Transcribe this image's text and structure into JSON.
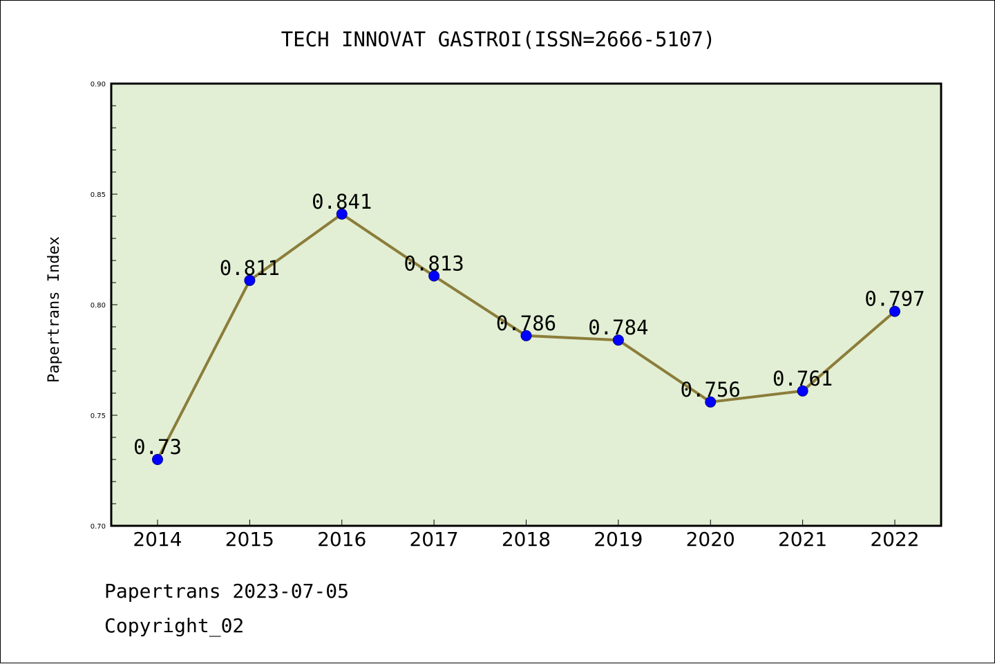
{
  "chart_data": {
    "type": "line",
    "title": "TECH INNOVAT GASTROI(ISSN=2666-5107)",
    "ylabel": "Papertrans Index",
    "xlabel": "",
    "categories": [
      "2014",
      "2015",
      "2016",
      "2017",
      "2018",
      "2019",
      "2020",
      "2021",
      "2022"
    ],
    "values": [
      0.73,
      0.811,
      0.841,
      0.813,
      0.786,
      0.784,
      0.756,
      0.761,
      0.797
    ],
    "data_labels": [
      "0.73",
      "0.811",
      "0.841",
      "0.813",
      "0.786",
      "0.784",
      "0.756",
      "0.761",
      "0.797"
    ],
    "ylim": [
      0.7,
      0.9
    ],
    "yticks": [
      "0.70",
      "0.75",
      "0.80",
      "0.85",
      "0.90"
    ],
    "grid": false,
    "colors": {
      "plot_background": "#e2efd4",
      "line": "#8b7d3a",
      "marker": "#0000ff"
    }
  },
  "footer": {
    "line1": "Papertrans 2023-07-05",
    "line2": "Copyright_02"
  }
}
